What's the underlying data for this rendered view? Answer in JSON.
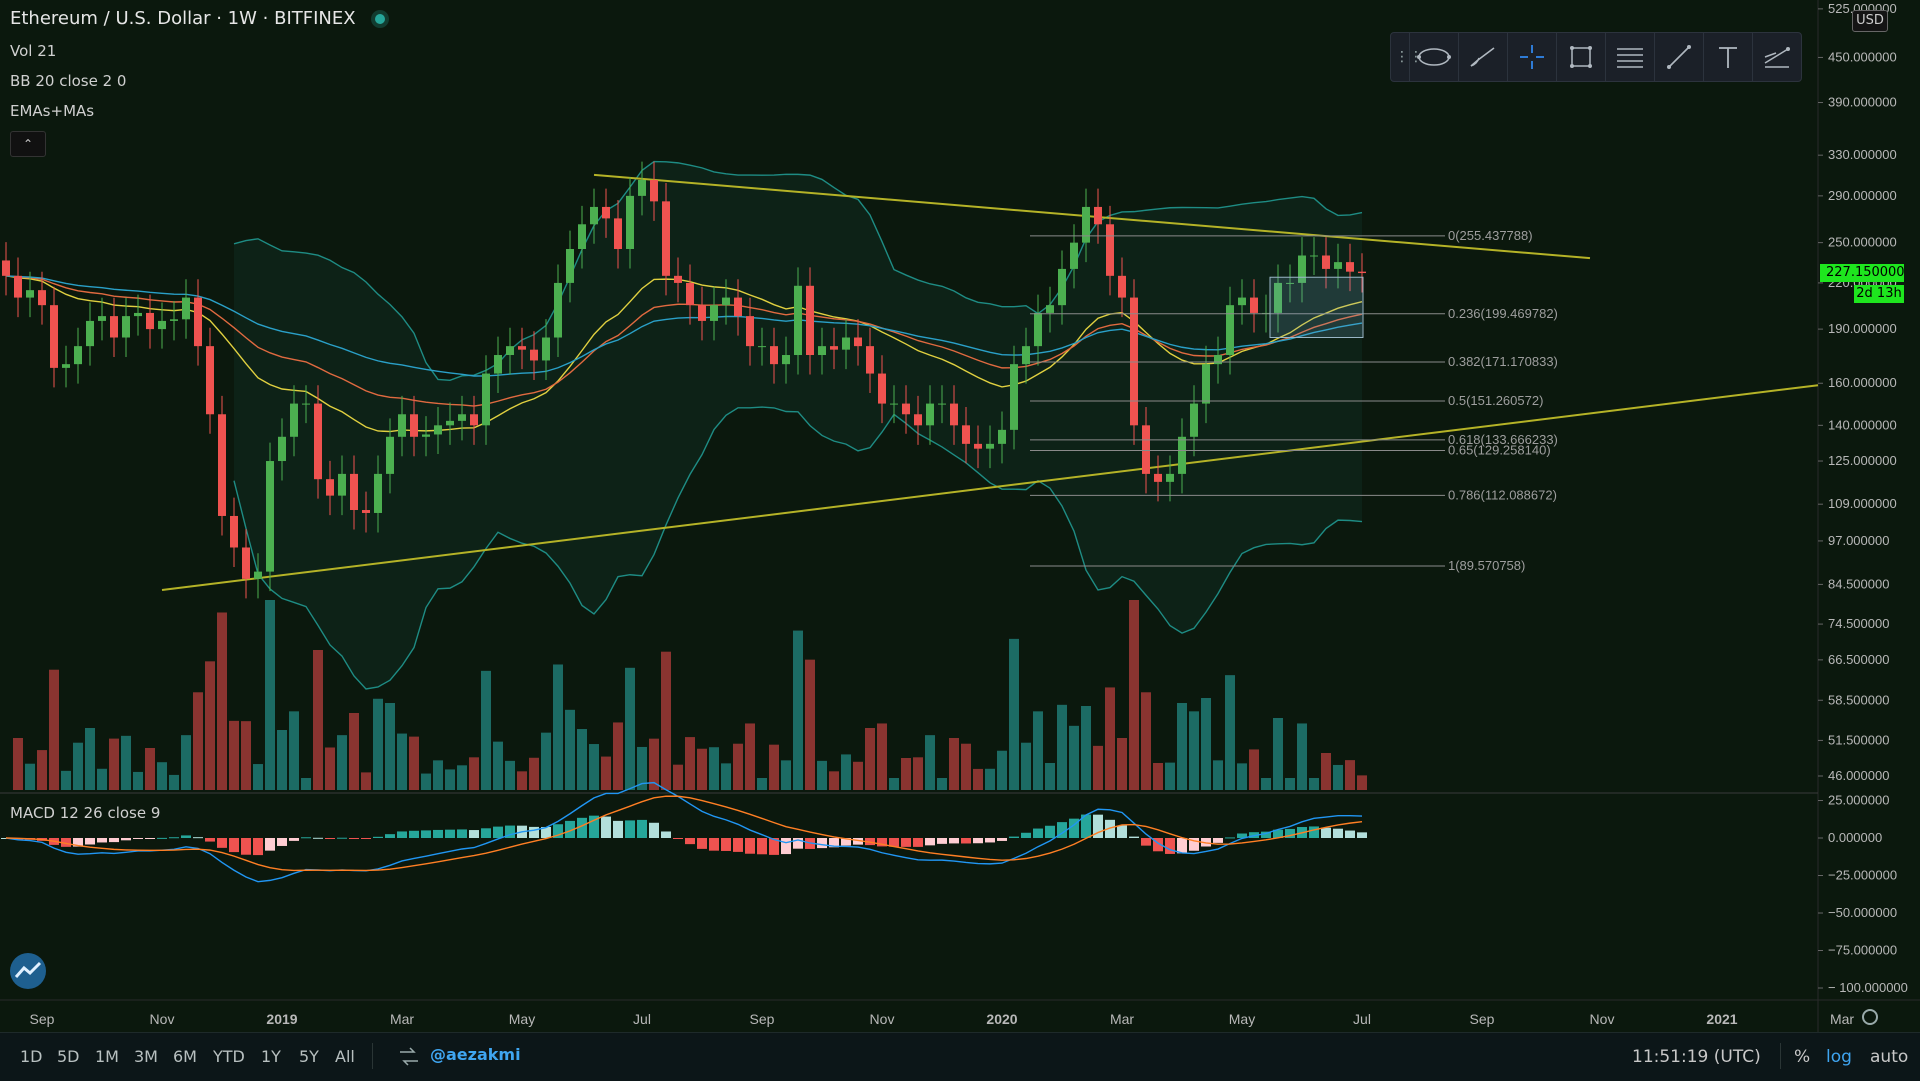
{
  "header": {
    "title": "Ethereum / U.S. Dollar · 1W · BITFINEX",
    "indicators": [
      "Vol 21",
      "BB 20 close 2 0",
      "EMAs+MAs"
    ],
    "collapse_icon": "chevron-up-icon"
  },
  "toolbar": {
    "tools": [
      "ellipse-icon",
      "brush-icon",
      "crosshair-icon",
      "rectangle-icon",
      "fib-retracement-icon",
      "trend-line-icon",
      "text-icon",
      "path-icon"
    ]
  },
  "price_axis": {
    "currency": "USD",
    "ticks": [
      "525.000000",
      "450.000000",
      "390.000000",
      "330.000000",
      "290.000000",
      "250.000000",
      "220.000000",
      "190.000000",
      "160.000000",
      "140.000000",
      "125.000000",
      "109.000000",
      "97.000000",
      "84.500000",
      "74.500000",
      "66.500000",
      "58.500000",
      "51.500000",
      "46.000000"
    ],
    "current_price": "227.150000",
    "countdown": "2d 13h"
  },
  "macd": {
    "label": "MACD 12 26 close 9",
    "ticks": [
      "25.000000",
      "0.000000",
      "−25.000000",
      "−50.000000",
      "−75.000000",
      "− 100.000000"
    ]
  },
  "time_axis": [
    "Sep",
    "Nov",
    "2019",
    "Mar",
    "May",
    "Jul",
    "Sep",
    "Nov",
    "2020",
    "Mar",
    "May",
    "Jul",
    "Sep",
    "Nov",
    "2021",
    "Mar"
  ],
  "bottom_bar": {
    "ranges": [
      "1D",
      "5D",
      "1M",
      "3M",
      "6M",
      "YTD",
      "1Y",
      "5Y",
      "All"
    ],
    "user": "@aezakmi",
    "clock": "11:51:19 (UTC)",
    "options": [
      "%",
      "log",
      "auto"
    ],
    "active_option": "log"
  },
  "colors": {
    "up": "#26a69a",
    "up_candle": "#4caf50",
    "down": "#ef5350",
    "background": "#0c1a0e",
    "fib": "#9e9e9e",
    "trend": "#b5b327"
  },
  "chart_data": {
    "type": "candlestick",
    "symbol": "ETHUSD",
    "interval": "1W",
    "exchange": "BITFINEX",
    "scale": "log",
    "ylim": [
      44,
      540
    ],
    "fib_levels": [
      {
        "label": "0(255.437788)",
        "value": 255.437788
      },
      {
        "label": "0.236(199.469782)",
        "value": 199.469782
      },
      {
        "label": "0.382(171.170833)",
        "value": 171.170833
      },
      {
        "label": "0.5(151.260572)",
        "value": 151.260572
      },
      {
        "label": "0.618(133.666233)",
        "value": 133.666233
      },
      {
        "label": "0.65(129.258140)",
        "value": 129.25814
      },
      {
        "label": "0.786(112.088672)",
        "value": 112.088672
      },
      {
        "label": "1(89.570758)",
        "value": 89.570758
      }
    ],
    "closes": [
      225,
      210,
      215,
      205,
      168,
      170,
      180,
      195,
      198,
      185,
      198,
      200,
      190,
      195,
      196,
      210,
      180,
      145,
      105,
      95,
      86,
      88,
      125,
      135,
      150,
      150,
      118,
      112,
      120,
      107,
      106,
      120,
      135,
      145,
      135,
      136,
      140,
      142,
      145,
      140,
      165,
      175,
      180,
      178,
      172,
      185,
      220,
      245,
      265,
      280,
      270,
      245,
      290,
      305,
      285,
      225,
      220,
      205,
      195,
      205,
      210,
      198,
      180,
      180,
      170,
      175,
      218,
      175,
      180,
      178,
      185,
      180,
      165,
      150,
      150,
      145,
      140,
      150,
      150,
      140,
      132,
      130,
      132,
      138,
      170,
      180,
      200,
      205,
      230,
      250,
      280,
      265,
      225,
      210,
      140,
      120,
      117,
      120,
      135,
      150,
      170,
      175,
      205,
      210,
      200,
      200,
      220,
      220,
      240,
      240,
      230,
      235,
      228,
      227
    ],
    "trendlines": [
      {
        "name": "upper",
        "from": [
          167.5,
          0
        ],
        "to": [
          -77,
          0
        ]
      },
      {
        "name": "lower",
        "from": [
          168,
          0
        ],
        "to": [
          -77,
          0
        ]
      }
    ]
  }
}
